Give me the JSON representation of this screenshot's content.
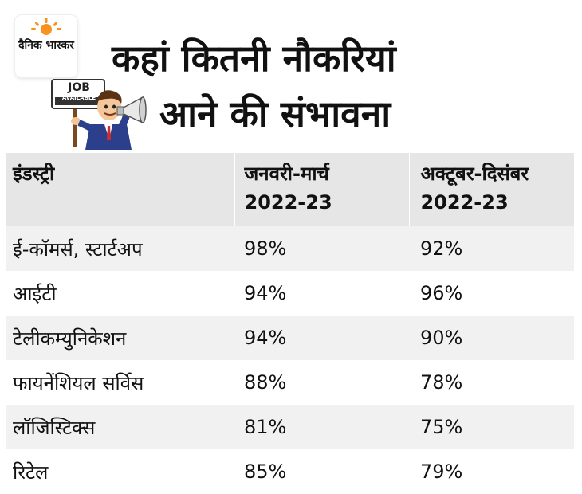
{
  "brand": {
    "logo_text": "दैनिक भास्कर",
    "accent_color": "#f7931e"
  },
  "title": {
    "line1": "कहां कितनी नौकरियां",
    "line2": "आने की संभावना"
  },
  "mascot": {
    "sign_title": "JOB",
    "sign_subtitle": "AVAILABLE"
  },
  "chart_data": {
    "type": "table",
    "title": "कहां कितनी नौकरियां आने की संभावना",
    "columns": [
      "इंडस्ट्री",
      "जनवरी-मार्च 2022-23",
      "अक्टूबर-दिसंबर 2022-23"
    ],
    "rows": [
      {
        "industry": "ई-कॉमर्स, स्टार्टअप",
        "jan_mar": "98%",
        "oct_dec": "92%"
      },
      {
        "industry": "आईटी",
        "jan_mar": "94%",
        "oct_dec": "96%"
      },
      {
        "industry": "टेलीकम्युनिकेशन",
        "jan_mar": "94%",
        "oct_dec": "90%"
      },
      {
        "industry": "फायनेंशियल सर्विस",
        "jan_mar": "88%",
        "oct_dec": "78%"
      },
      {
        "industry": "लॉजिस्टिक्स",
        "jan_mar": "81%",
        "oct_dec": "75%"
      },
      {
        "industry": "रिटेल",
        "jan_mar": "85%",
        "oct_dec": "79%"
      }
    ]
  },
  "table": {
    "headers": {
      "industry": "इंडस्ट्री",
      "jan_mar_line1": "जनवरी-मार्च",
      "jan_mar_line2": "2022-23",
      "oct_dec_line1": "अक्टूबर-दिसंबर",
      "oct_dec_line2": "2022-23"
    }
  }
}
